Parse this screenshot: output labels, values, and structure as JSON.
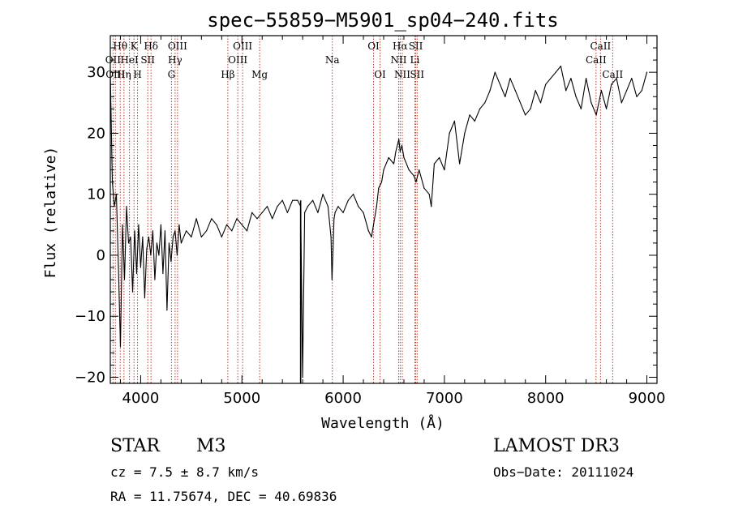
{
  "chart_data": {
    "type": "line",
    "title": "spec−55859−M5901_sp04−240.fits",
    "xlabel": "Wavelength (Å)",
    "ylabel": "Flux (relative)",
    "xlim": [
      3700,
      9100
    ],
    "ylim": [
      -21,
      36
    ],
    "x_ticks": [
      4000,
      5000,
      6000,
      7000,
      8000,
      9000
    ],
    "y_ticks": [
      {
        "value": -20,
        "label": "−20"
      },
      {
        "value": -10,
        "label": "−10"
      },
      {
        "value": 0,
        "label": "0"
      },
      {
        "value": 10,
        "label": "10"
      },
      {
        "value": 20,
        "label": "20"
      },
      {
        "value": 30,
        "label": "30"
      }
    ],
    "series": [
      {
        "name": "flux",
        "x": [
          3700,
          3720,
          3740,
          3760,
          3780,
          3800,
          3820,
          3840,
          3860,
          3880,
          3900,
          3920,
          3940,
          3960,
          3980,
          4000,
          4020,
          4040,
          4060,
          4080,
          4100,
          4120,
          4140,
          4160,
          4180,
          4200,
          4220,
          4240,
          4260,
          4280,
          4300,
          4320,
          4340,
          4360,
          4380,
          4400,
          4450,
          4500,
          4550,
          4600,
          4650,
          4700,
          4750,
          4800,
          4850,
          4900,
          4950,
          5000,
          5050,
          5100,
          5150,
          5200,
          5250,
          5300,
          5350,
          5400,
          5450,
          5500,
          5550,
          5580,
          5600,
          5620,
          5650,
          5700,
          5750,
          5800,
          5850,
          5880,
          5890,
          5900,
          5910,
          5920,
          5950,
          6000,
          6050,
          6100,
          6150,
          6200,
          6250,
          6280,
          6300,
          6330,
          6350,
          6380,
          6400,
          6450,
          6500,
          6520,
          6550,
          6563,
          6580,
          6600,
          6650,
          6700,
          6720,
          6750,
          6800,
          6850,
          6870,
          6900,
          6950,
          7000,
          7050,
          7100,
          7150,
          7200,
          7250,
          7300,
          7350,
          7400,
          7450,
          7500,
          7550,
          7600,
          7650,
          7700,
          7750,
          7800,
          7850,
          7900,
          7950,
          8000,
          8050,
          8100,
          8150,
          8200,
          8250,
          8300,
          8350,
          8400,
          8450,
          8500,
          8550,
          8600,
          8650,
          8700,
          8750,
          8800,
          8850,
          8900,
          8950,
          9000
        ],
        "y": [
          30,
          12,
          8,
          10,
          -2,
          -15,
          5,
          -4,
          8,
          2,
          3,
          -6,
          4,
          -3,
          5,
          -2,
          3,
          -7,
          1,
          3,
          0,
          4,
          -4,
          2,
          0,
          5,
          -3,
          4,
          -9,
          2,
          -1,
          3,
          4,
          0,
          5,
          2,
          4,
          3,
          6,
          3,
          4,
          6,
          5,
          3,
          5,
          4,
          6,
          5,
          4,
          7,
          6,
          7,
          8,
          6,
          8,
          9,
          7,
          9,
          9,
          8,
          -20,
          7,
          8,
          9,
          7,
          10,
          8,
          3,
          -4,
          1,
          6,
          7,
          8,
          7,
          9,
          10,
          8,
          7,
          4,
          3,
          5,
          8,
          11,
          12,
          14,
          16,
          15,
          17,
          19,
          17,
          18,
          16,
          14,
          13,
          12,
          14,
          11,
          10,
          8,
          15,
          16,
          14,
          20,
          22,
          15,
          20,
          23,
          22,
          24,
          25,
          27,
          30,
          28,
          26,
          29,
          27,
          25,
          23,
          24,
          27,
          25,
          28,
          29,
          30,
          31,
          27,
          29,
          26,
          24,
          29,
          25,
          23,
          27,
          24,
          28,
          29,
          25,
          27,
          29,
          26,
          27,
          30
        ]
      }
    ],
    "dropouts": [
      {
        "x": 5580,
        "y_top": 9,
        "y_bottom": -21
      }
    ],
    "spectral_lines": [
      {
        "label": "Hθ",
        "x": 3798,
        "row": 1
      },
      {
        "label": "OII",
        "x": 3727,
        "row": 2
      },
      {
        "label": "OIII",
        "x": 3750,
        "row": 3
      },
      {
        "label": "Hη",
        "x": 3835,
        "row": 3
      },
      {
        "label": "K",
        "x": 3934,
        "row": 1
      },
      {
        "label": "HeI",
        "x": 3889,
        "row": 2
      },
      {
        "label": "SII",
        "x": 4070,
        "row": 2
      },
      {
        "label": "H",
        "x": 3969,
        "row": 3
      },
      {
        "label": "Hδ",
        "x": 4102,
        "row": 1
      },
      {
        "label": "OIII",
        "x": 4364,
        "row": 1
      },
      {
        "label": "Hγ",
        "x": 4340,
        "row": 2
      },
      {
        "label": "G",
        "x": 4304,
        "row": 3
      },
      {
        "label": "OIII",
        "x": 5007,
        "row": 1
      },
      {
        "label": "OIII",
        "x": 4959,
        "row": 2
      },
      {
        "label": "Hβ",
        "x": 4861,
        "row": 3
      },
      {
        "label": "Mg",
        "x": 5175,
        "row": 3
      },
      {
        "label": "Na",
        "x": 5893,
        "row": 2
      },
      {
        "label": "OI",
        "x": 6300,
        "row": 1
      },
      {
        "label": "OI",
        "x": 6364,
        "row": 3
      },
      {
        "label": "Hα",
        "x": 6563,
        "row": 1
      },
      {
        "label": "NII",
        "x": 6548,
        "row": 2
      },
      {
        "label": "NII",
        "x": 6584,
        "row": 3
      },
      {
        "label": "SII",
        "x": 6717,
        "row": 1
      },
      {
        "label": "Li",
        "x": 6708,
        "row": 2
      },
      {
        "label": "SII",
        "x": 6731,
        "row": 3
      },
      {
        "label": "CaII",
        "x": 8542,
        "row": 1
      },
      {
        "label": "CaII",
        "x": 8498,
        "row": 2
      },
      {
        "label": "CaII",
        "x": 8662,
        "row": 3
      }
    ],
    "line_color": "#c0392b"
  },
  "info": {
    "object_class": "STAR",
    "subclass": "M3",
    "survey": "LAMOST DR3",
    "cz": "cz = 7.5 ± 8.7 km/s",
    "obs_date": "Obs−Date: 20111024",
    "coords": "RA =  11.75674, DEC =  40.69836"
  }
}
